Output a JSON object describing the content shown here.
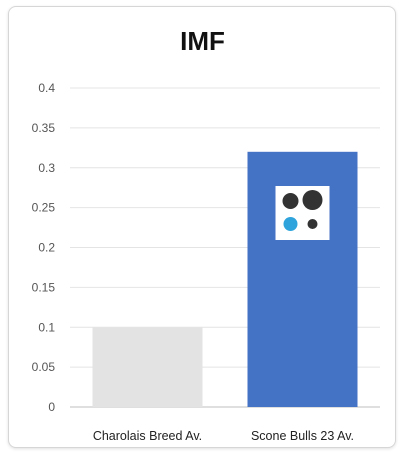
{
  "chart_data": {
    "type": "bar",
    "title": "IMF",
    "categories": [
      "Charolais Breed Av.",
      "Scone Bulls 23 Av."
    ],
    "values": [
      0.1,
      0.32
    ],
    "bar_colors": [
      "#e3e3e3",
      "#4472c4"
    ],
    "ylim": [
      0,
      0.4
    ],
    "yticks": [
      "0",
      "0.05",
      "0.1",
      "0.15",
      "0.2",
      "0.25",
      "0.3",
      "0.35",
      "0.4"
    ],
    "xlabel": "",
    "ylabel": "",
    "grid": true,
    "legend": "none"
  },
  "logo": {
    "icon": "four-dots-logo-icon",
    "dot_colors": [
      "#333333",
      "#333333",
      "#2fa4dc",
      "#333333"
    ]
  }
}
